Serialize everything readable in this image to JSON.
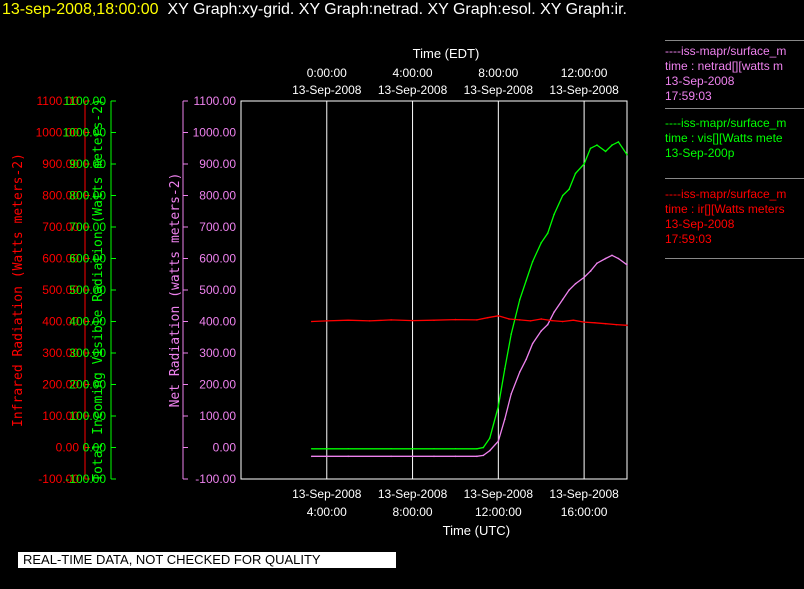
{
  "header": {
    "timestamp": "13-sep-2008,18:00:00",
    "graphs": "XY Graph:xy-grid.  XY Graph:netrad.  XY Graph:esol.  XY Graph:ir."
  },
  "legend": [
    {
      "line1": "----iss-mapr/surface_m",
      "line2": "time : netrad[][watts m",
      "line3": "13-Sep-2008",
      "line4": "17:59:03",
      "color": "#ee82ee"
    },
    {
      "line1": "----iss-mapr/surface_m",
      "line2": "time : vis[][Watts mete",
      "line3": "13-Sep-200p",
      "line4": "",
      "color": "#00ff00"
    },
    {
      "line1": "----iss-mapr/surface_m",
      "line2": "time : ir[][Watts meters",
      "line3": "13-Sep-2008",
      "line4": "17:59:03",
      "color": "#ff0000"
    }
  ],
  "footer_note": "REAL-TIME DATA, NOT CHECKED FOR QUALITY",
  "colors": {
    "ir": "#ff0000",
    "vis": "#00ff00",
    "netrad": "#ee82ee",
    "axis": "#ffffff",
    "grid": "#ffffff"
  },
  "chart_data": {
    "type": "line",
    "grid": true,
    "x_top_title": "Time (EDT)",
    "x_bottom_title": "Time (UTC)",
    "x_range_hours_utc": [
      0,
      18
    ],
    "x_top_ticks": [
      {
        "hour": 4,
        "line1": "0:00:00",
        "line2": "13-Sep-2008"
      },
      {
        "hour": 8,
        "line1": "4:00:00",
        "line2": "13-Sep-2008"
      },
      {
        "hour": 12,
        "line1": "8:00:00",
        "line2": "13-Sep-2008"
      },
      {
        "hour": 16,
        "line1": "12:00:00",
        "line2": "13-Sep-2008"
      }
    ],
    "x_bottom_ticks": [
      {
        "hour": 4,
        "line1": "13-Sep-2008",
        "line2": "4:00:00"
      },
      {
        "hour": 8,
        "line1": "13-Sep-2008",
        "line2": "8:00:00"
      },
      {
        "hour": 12,
        "line1": "13-Sep-2008",
        "line2": "12:00:00"
      },
      {
        "hour": 16,
        "line1": "13-Sep-2008",
        "line2": "16:00:00"
      }
    ],
    "y_ticks": [
      -100,
      0,
      100,
      200,
      300,
      400,
      500,
      600,
      700,
      800,
      900,
      1000,
      1100
    ],
    "y_tick_labels": [
      "-100.00",
      "0.00",
      "100.00",
      "200.00",
      "300.00",
      "400.00",
      "500.00",
      "600.00",
      "700.00",
      "800.00",
      "900.00",
      "1000.00",
      "1100.00"
    ],
    "axes": [
      {
        "key": "ir",
        "ylabel": "Infrared Radiation (Watts meters-2)",
        "ylim": [
          -100,
          1100
        ]
      },
      {
        "key": "vis",
        "ylabel": "Total Incoming Visible Radiation (Watts meters-2)",
        "ylim": [
          -100,
          1100
        ]
      },
      {
        "key": "netrad",
        "ylabel": "Net Radiation (watts meters-2)",
        "ylim": [
          -100,
          1100
        ]
      }
    ],
    "series": [
      {
        "key": "ir",
        "x": [
          3.3,
          4,
          5,
          6,
          7,
          8,
          9,
          10,
          11,
          11.5,
          12,
          12.5,
          13,
          13.5,
          14,
          14.5,
          15,
          15.5,
          16,
          16.5,
          17,
          17.5,
          18
        ],
        "y": [
          400,
          402,
          404,
          402,
          405,
          403,
          404,
          406,
          405,
          412,
          418,
          408,
          405,
          402,
          408,
          403,
          400,
          404,
          398,
          396,
          393,
          390,
          388
        ]
      },
      {
        "key": "vis",
        "x": [
          3.3,
          5,
          7,
          9,
          10,
          11,
          11.3,
          11.6,
          12,
          12.3,
          12.6,
          13,
          13.3,
          13.6,
          14,
          14.3,
          14.6,
          15,
          15.3,
          15.6,
          16,
          16.3,
          16.6,
          17,
          17.3,
          17.6,
          18
        ],
        "y": [
          -4,
          -4,
          -4,
          -4,
          -4,
          -4,
          0,
          30,
          130,
          250,
          360,
          470,
          530,
          590,
          650,
          680,
          740,
          800,
          820,
          870,
          900,
          950,
          960,
          940,
          960,
          970,
          930
        ]
      },
      {
        "key": "netrad",
        "x": [
          3.3,
          5,
          7,
          9,
          10,
          11,
          11.3,
          11.6,
          12,
          12.3,
          12.6,
          13,
          13.3,
          13.6,
          14,
          14.3,
          14.6,
          15,
          15.3,
          15.6,
          16,
          16.3,
          16.6,
          17,
          17.3,
          17.6,
          18
        ],
        "y": [
          -28,
          -28,
          -28,
          -28,
          -28,
          -28,
          -25,
          -10,
          20,
          90,
          170,
          240,
          280,
          330,
          370,
          390,
          430,
          470,
          500,
          520,
          540,
          560,
          585,
          600,
          610,
          600,
          580
        ]
      }
    ]
  }
}
